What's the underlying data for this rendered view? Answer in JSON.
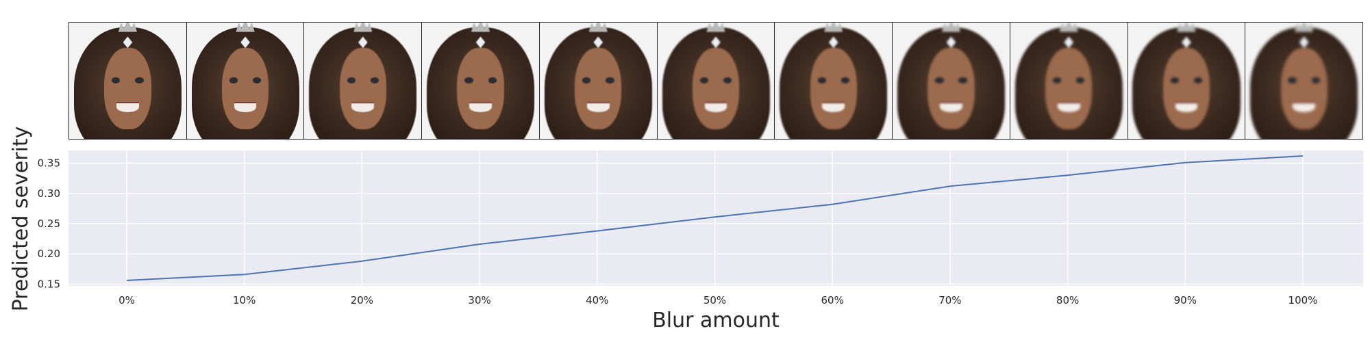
{
  "thumbnails": {
    "count": 11,
    "alt": [
      "0%",
      "10%",
      "20%",
      "30%",
      "40%",
      "50%",
      "60%",
      "70%",
      "80%",
      "90%",
      "100%"
    ]
  },
  "chart_data": {
    "type": "line",
    "title": "",
    "xlabel": "Blur amount",
    "ylabel": "Predicted severity",
    "categories": [
      "0%",
      "10%",
      "20%",
      "30%",
      "40%",
      "50%",
      "60%",
      "70%",
      "80%",
      "90%",
      "100%"
    ],
    "series": [
      {
        "values": [
          0.156,
          0.166,
          0.188,
          0.216,
          0.238,
          0.261,
          0.282,
          0.312,
          0.33,
          0.351,
          0.362
        ]
      }
    ],
    "yticks": [
      0.15,
      0.2,
      0.25,
      0.3,
      0.35
    ],
    "ytick_labels": [
      "0.15",
      "0.20",
      "0.25",
      "0.30",
      "0.35"
    ],
    "ylim": [
      0.147,
      0.371
    ],
    "grid": true,
    "background": "#eaeaf2",
    "grid_color": "#ffffff",
    "line_color": "#4c72b0"
  }
}
